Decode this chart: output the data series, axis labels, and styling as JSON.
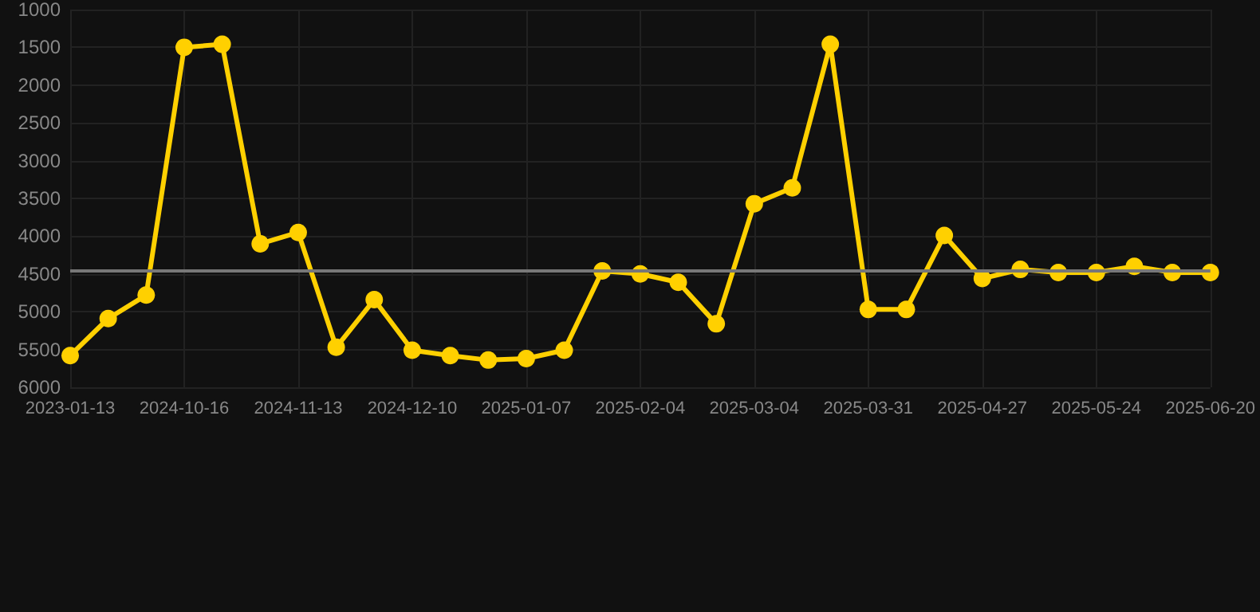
{
  "chart_data": {
    "type": "line",
    "categories": [
      "2023-01-13",
      null,
      null,
      "2024-10-16",
      null,
      null,
      "2024-11-13",
      null,
      null,
      "2024-12-10",
      null,
      null,
      "2025-01-07",
      null,
      null,
      "2025-02-04",
      null,
      null,
      "2025-03-04",
      null,
      null,
      "2025-03-31",
      null,
      null,
      "2025-04-27",
      null,
      null,
      "2025-05-24",
      null,
      null,
      "2025-06-20"
    ],
    "series": [
      {
        "color": "#ffd000",
        "values": [
          5580,
          5090,
          4780,
          1500,
          1460,
          4100,
          3950,
          5470,
          4840,
          5510,
          5580,
          5640,
          5620,
          5510,
          4460,
          4500,
          4610,
          5160,
          3570,
          3360,
          1460,
          4970,
          4970,
          3990,
          4560,
          4440,
          4480,
          4480,
          4400,
          4480,
          4480
        ]
      }
    ],
    "ref_lines": [
      {
        "axis": "y",
        "value": 4450,
        "color": "#777777",
        "line_style": "solid"
      }
    ],
    "ylim": [
      6000,
      1000
    ],
    "yticks": [
      1000,
      1500,
      2000,
      2500,
      3000,
      3500,
      4000,
      4500,
      5000,
      5500,
      6000
    ],
    "grid": true,
    "marker": "circle",
    "line_style": "solid"
  }
}
